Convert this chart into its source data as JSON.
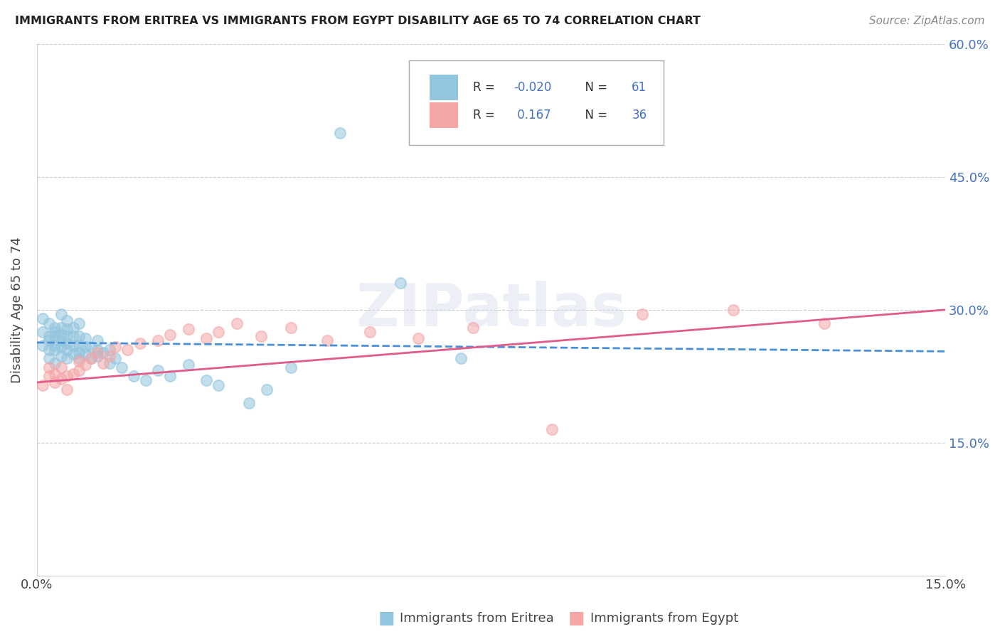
{
  "title": "IMMIGRANTS FROM ERITREA VS IMMIGRANTS FROM EGYPT DISABILITY AGE 65 TO 74 CORRELATION CHART",
  "source": "Source: ZipAtlas.com",
  "xlabel_bottom": "Immigrants from Eritrea",
  "xlabel_bottom2": "Immigrants from Egypt",
  "ylabel": "Disability Age 65 to 74",
  "x_min": 0.0,
  "x_max": 0.15,
  "y_min": 0.0,
  "y_max": 0.6,
  "y_ticks_right": [
    0.15,
    0.3,
    0.45,
    0.6
  ],
  "y_tick_labels_right": [
    "15.0%",
    "30.0%",
    "45.0%",
    "60.0%"
  ],
  "r_eritrea": -0.02,
  "n_eritrea": 61,
  "r_egypt": 0.167,
  "n_egypt": 36,
  "color_eritrea": "#92c5de",
  "color_egypt": "#f4a6a6",
  "color_eritrea_line": "#4a90d9",
  "color_egypt_line": "#e05a8a",
  "watermark": "ZIPatlas",
  "eritrea_x": [
    0.001,
    0.001,
    0.001,
    0.002,
    0.002,
    0.002,
    0.002,
    0.002,
    0.003,
    0.003,
    0.003,
    0.003,
    0.003,
    0.003,
    0.004,
    0.004,
    0.004,
    0.004,
    0.004,
    0.004,
    0.005,
    0.005,
    0.005,
    0.005,
    0.005,
    0.005,
    0.006,
    0.006,
    0.006,
    0.006,
    0.007,
    0.007,
    0.007,
    0.007,
    0.007,
    0.008,
    0.008,
    0.008,
    0.009,
    0.009,
    0.01,
    0.01,
    0.01,
    0.011,
    0.012,
    0.012,
    0.013,
    0.014,
    0.016,
    0.018,
    0.02,
    0.022,
    0.025,
    0.028,
    0.03,
    0.035,
    0.038,
    0.042,
    0.05,
    0.06,
    0.07
  ],
  "eritrea_y": [
    0.26,
    0.275,
    0.29,
    0.245,
    0.255,
    0.265,
    0.27,
    0.285,
    0.24,
    0.255,
    0.26,
    0.27,
    0.275,
    0.28,
    0.248,
    0.258,
    0.265,
    0.272,
    0.28,
    0.295,
    0.245,
    0.255,
    0.262,
    0.27,
    0.278,
    0.288,
    0.25,
    0.26,
    0.27,
    0.28,
    0.245,
    0.252,
    0.26,
    0.27,
    0.285,
    0.25,
    0.258,
    0.268,
    0.245,
    0.258,
    0.248,
    0.255,
    0.265,
    0.252,
    0.24,
    0.255,
    0.245,
    0.235,
    0.225,
    0.22,
    0.232,
    0.225,
    0.238,
    0.22,
    0.215,
    0.195,
    0.21,
    0.235,
    0.5,
    0.33,
    0.245
  ],
  "egypt_x": [
    0.001,
    0.002,
    0.002,
    0.003,
    0.003,
    0.004,
    0.004,
    0.005,
    0.005,
    0.006,
    0.007,
    0.007,
    0.008,
    0.009,
    0.01,
    0.011,
    0.012,
    0.013,
    0.015,
    0.017,
    0.02,
    0.022,
    0.025,
    0.028,
    0.03,
    0.033,
    0.037,
    0.042,
    0.048,
    0.055,
    0.063,
    0.072,
    0.085,
    0.1,
    0.115,
    0.13
  ],
  "egypt_y": [
    0.215,
    0.225,
    0.235,
    0.218,
    0.228,
    0.222,
    0.235,
    0.21,
    0.225,
    0.228,
    0.232,
    0.242,
    0.238,
    0.245,
    0.252,
    0.24,
    0.248,
    0.258,
    0.255,
    0.262,
    0.265,
    0.272,
    0.278,
    0.268,
    0.275,
    0.285,
    0.27,
    0.28,
    0.265,
    0.275,
    0.268,
    0.28,
    0.165,
    0.295,
    0.3,
    0.285
  ]
}
